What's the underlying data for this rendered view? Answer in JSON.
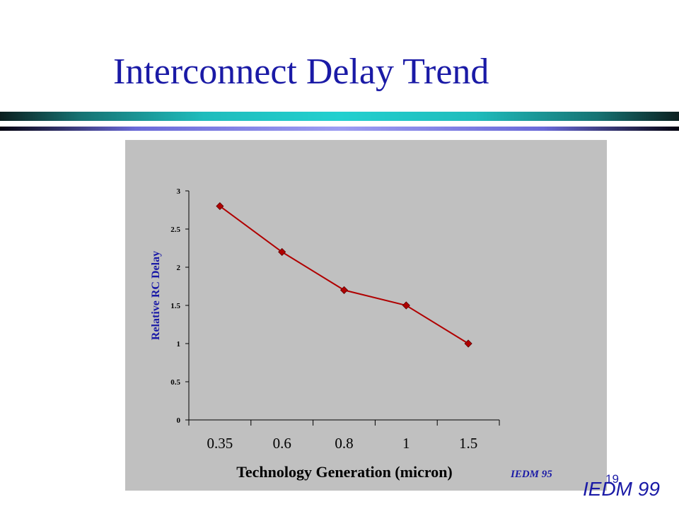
{
  "slide": {
    "title": "Interconnect Delay Trend",
    "page_number": "19",
    "footer": "IEDM 99"
  },
  "colors": {
    "title": "#1a1aa6",
    "panel_background": "#c0c0c0",
    "series_line": "#b00000"
  },
  "chart_data": {
    "type": "line",
    "categories": [
      "0.35",
      "0.6",
      "0.8",
      "1",
      "1.5"
    ],
    "series": [
      {
        "values": [
          2.8,
          2.2,
          1.7,
          1.5,
          1.0
        ]
      }
    ],
    "ylabel": "Relative RC Delay",
    "xlabel": "Technology Generation (micron)",
    "annotation": "IEDM 95",
    "ylim": [
      0,
      3
    ],
    "yticks": [
      "0",
      "0.5",
      "1",
      "1.5",
      "2",
      "2.5",
      "3"
    ],
    "grid": false,
    "marker": "diamond",
    "legend": "none"
  }
}
